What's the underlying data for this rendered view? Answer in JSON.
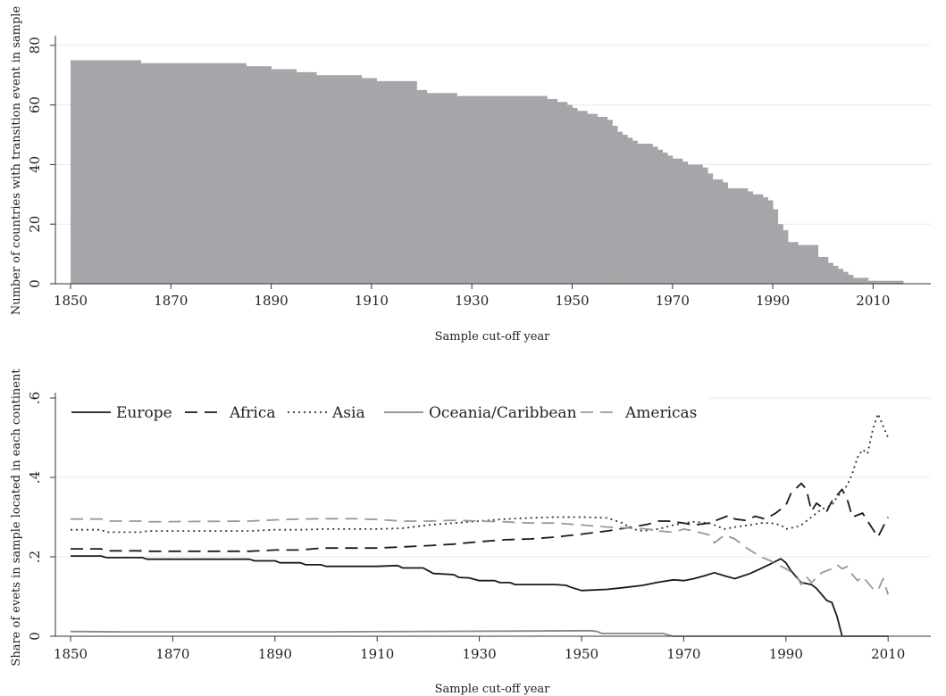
{
  "charts": [
    {
      "type": "bar",
      "xlabel": "Sample cut-off year",
      "ylabel": "Number of countries with transition event in sample",
      "xlim": [
        1850,
        2016
      ],
      "ylim": [
        0,
        80
      ],
      "xticks": [
        1850,
        1870,
        1890,
        1910,
        1930,
        1950,
        1970,
        1990,
        2010
      ],
      "yticks": [
        0,
        20,
        40,
        60,
        80
      ],
      "color": "#a5a6a9",
      "grid": true,
      "steps": [
        [
          1850,
          75
        ],
        [
          1864,
          74
        ],
        [
          1885,
          73
        ],
        [
          1890,
          72
        ],
        [
          1895,
          71
        ],
        [
          1899,
          70
        ],
        [
          1908,
          69
        ],
        [
          1911,
          68
        ],
        [
          1919,
          65
        ],
        [
          1921,
          64
        ],
        [
          1927,
          63
        ],
        [
          1945,
          62
        ],
        [
          1947,
          61
        ],
        [
          1949,
          60
        ],
        [
          1950,
          59
        ],
        [
          1951,
          58
        ],
        [
          1953,
          57
        ],
        [
          1955,
          56
        ],
        [
          1957,
          55
        ],
        [
          1958,
          53
        ],
        [
          1959,
          51
        ],
        [
          1960,
          50
        ],
        [
          1961,
          49
        ],
        [
          1962,
          48
        ],
        [
          1963,
          47
        ],
        [
          1966,
          46
        ],
        [
          1967,
          45
        ],
        [
          1968,
          44
        ],
        [
          1969,
          43
        ],
        [
          1970,
          42
        ],
        [
          1972,
          41
        ],
        [
          1973,
          40
        ],
        [
          1976,
          39
        ],
        [
          1977,
          37
        ],
        [
          1978,
          35
        ],
        [
          1980,
          34
        ],
        [
          1981,
          32
        ],
        [
          1985,
          31
        ],
        [
          1986,
          30
        ],
        [
          1988,
          29
        ],
        [
          1989,
          28
        ],
        [
          1990,
          25
        ],
        [
          1991,
          20
        ],
        [
          1992,
          18
        ],
        [
          1993,
          14
        ],
        [
          1995,
          13
        ],
        [
          1999,
          9
        ],
        [
          2001,
          7
        ],
        [
          2002,
          6
        ],
        [
          2003,
          5
        ],
        [
          2004,
          4
        ],
        [
          2005,
          3
        ],
        [
          2006,
          2
        ],
        [
          2009,
          1
        ],
        [
          2016,
          0
        ]
      ]
    },
    {
      "type": "line",
      "xlabel": "Sample cut-off year",
      "ylabel": "Share of evets in sample located in each continent",
      "xlim": [
        1850,
        2010
      ],
      "ylim": [
        0,
        0.6
      ],
      "xticks": [
        1850,
        1870,
        1890,
        1910,
        1930,
        1950,
        1970,
        1990,
        2010
      ],
      "yticks": [
        0,
        0.2,
        0.4,
        0.6
      ],
      "ytick_labels": [
        "0",
        ".2",
        ".4",
        ".6"
      ],
      "grid": true,
      "legend": "top",
      "series": [
        {
          "name": "Europe",
          "color": "#1a1a1a",
          "dash": "",
          "x": [
            1850,
            1856,
            1857,
            1864,
            1865,
            1885,
            1886,
            1890,
            1891,
            1895,
            1896,
            1899,
            1900,
            1910,
            1914,
            1915,
            1919,
            1920,
            1921,
            1925,
            1926,
            1928,
            1930,
            1933,
            1934,
            1936,
            1937,
            1945,
            1947,
            1948,
            1950,
            1955,
            1958,
            1962,
            1965,
            1968,
            1970,
            1972,
            1974,
            1976,
            1978,
            1980,
            1983,
            1985,
            1987,
            1989,
            1990,
            1991,
            1992,
            1993,
            1995,
            1996,
            1998,
            1999,
            2000,
            2001,
            2005,
            2010
          ],
          "y": [
            0.202,
            0.202,
            0.198,
            0.198,
            0.194,
            0.194,
            0.19,
            0.19,
            0.185,
            0.185,
            0.18,
            0.18,
            0.176,
            0.176,
            0.178,
            0.172,
            0.172,
            0.165,
            0.158,
            0.155,
            0.148,
            0.147,
            0.14,
            0.14,
            0.135,
            0.135,
            0.13,
            0.13,
            0.128,
            0.123,
            0.115,
            0.118,
            0.122,
            0.128,
            0.136,
            0.142,
            0.14,
            0.145,
            0.152,
            0.16,
            0.152,
            0.145,
            0.158,
            0.17,
            0.182,
            0.195,
            0.185,
            0.165,
            0.15,
            0.135,
            0.13,
            0.12,
            0.09,
            0.085,
            0.05,
            0.0,
            0.0,
            0.0
          ]
        },
        {
          "name": "Africa",
          "color": "#1a1a1a",
          "dash": "14,8",
          "x": [
            1850,
            1856,
            1857,
            1864,
            1865,
            1885,
            1890,
            1895,
            1899,
            1905,
            1910,
            1915,
            1920,
            1925,
            1930,
            1935,
            1940,
            1945,
            1950,
            1955,
            1960,
            1963,
            1965,
            1967,
            1970,
            1972,
            1975,
            1978,
            1979,
            1980,
            1982,
            1984,
            1986,
            1988,
            1990,
            1991,
            1993,
            1994,
            1995,
            1996,
            1998,
            1999,
            2000,
            2001,
            2002,
            2003,
            2005,
            2006,
            2007,
            2008,
            2010
          ],
          "y": [
            0.22,
            0.22,
            0.215,
            0.215,
            0.214,
            0.214,
            0.217,
            0.217,
            0.222,
            0.222,
            0.222,
            0.225,
            0.228,
            0.232,
            0.238,
            0.243,
            0.245,
            0.25,
            0.257,
            0.265,
            0.275,
            0.282,
            0.29,
            0.29,
            0.285,
            0.28,
            0.285,
            0.3,
            0.305,
            0.295,
            0.292,
            0.302,
            0.295,
            0.31,
            0.33,
            0.36,
            0.385,
            0.37,
            0.315,
            0.335,
            0.315,
            0.34,
            0.355,
            0.37,
            0.345,
            0.3,
            0.31,
            0.29,
            0.27,
            0.25,
            0.3
          ]
        },
        {
          "name": "Asia",
          "color": "#333333",
          "dash": "2,4",
          "x": [
            1850,
            1856,
            1857,
            1864,
            1865,
            1885,
            1890,
            1895,
            1900,
            1905,
            1910,
            1915,
            1920,
            1925,
            1930,
            1935,
            1940,
            1945,
            1950,
            1955,
            1958,
            1960,
            1962,
            1965,
            1968,
            1970,
            1972,
            1975,
            1978,
            1980,
            1983,
            1985,
            1987,
            1989,
            1990,
            1992,
            1993,
            1995,
            1997,
            1999,
            2000,
            2002,
            2003,
            2004,
            2005,
            2006,
            2007,
            2008,
            2009,
            2010
          ],
          "y": [
            0.268,
            0.268,
            0.262,
            0.262,
            0.265,
            0.265,
            0.268,
            0.268,
            0.27,
            0.27,
            0.27,
            0.272,
            0.28,
            0.285,
            0.29,
            0.295,
            0.298,
            0.3,
            0.3,
            0.298,
            0.285,
            0.27,
            0.265,
            0.27,
            0.28,
            0.285,
            0.288,
            0.285,
            0.27,
            0.275,
            0.28,
            0.285,
            0.285,
            0.28,
            0.27,
            0.275,
            0.28,
            0.3,
            0.32,
            0.33,
            0.35,
            0.38,
            0.41,
            0.45,
            0.47,
            0.46,
            0.52,
            0.56,
            0.53,
            0.5
          ]
        },
        {
          "name": "Oceania/Caribbean",
          "color": "#888888",
          "dash": "",
          "x": [
            1850,
            1860,
            1900,
            1940,
            1952,
            1953,
            1954,
            1960,
            1965,
            1966,
            1967,
            1968,
            2010
          ],
          "y": [
            0.012,
            0.011,
            0.011,
            0.013,
            0.014,
            0.012,
            0.007,
            0.007,
            0.007,
            0.007,
            0.003,
            0.0,
            0.0
          ]
        },
        {
          "name": "Americas",
          "color": "#999999",
          "dash": "14,8",
          "x": [
            1850,
            1856,
            1857,
            1864,
            1865,
            1885,
            1890,
            1895,
            1900,
            1905,
            1910,
            1915,
            1920,
            1925,
            1930,
            1935,
            1940,
            1945,
            1950,
            1955,
            1960,
            1963,
            1965,
            1968,
            1970,
            1972,
            1975,
            1976,
            1977,
            1978,
            1980,
            1982,
            1985,
            1987,
            1990,
            1992,
            1993,
            1994,
            1995,
            1997,
            1999,
            2000,
            2001,
            2002,
            2003,
            2004,
            2005,
            2006,
            2007,
            2008,
            2009,
            2010
          ],
          "y": [
            0.295,
            0.295,
            0.29,
            0.29,
            0.288,
            0.29,
            0.293,
            0.295,
            0.296,
            0.296,
            0.294,
            0.29,
            0.29,
            0.292,
            0.29,
            0.288,
            0.285,
            0.285,
            0.28,
            0.275,
            0.272,
            0.27,
            0.265,
            0.262,
            0.27,
            0.265,
            0.255,
            0.235,
            0.245,
            0.255,
            0.245,
            0.225,
            0.2,
            0.19,
            0.17,
            0.155,
            0.13,
            0.15,
            0.135,
            0.16,
            0.17,
            0.18,
            0.17,
            0.175,
            0.155,
            0.14,
            0.15,
            0.135,
            0.12,
            0.115,
            0.145,
            0.105
          ]
        }
      ]
    }
  ]
}
